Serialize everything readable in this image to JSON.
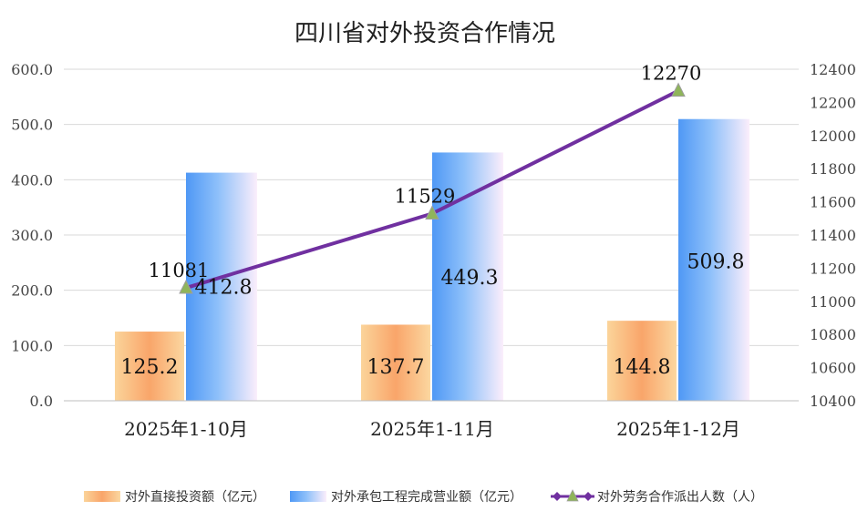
{
  "chart_data": {
    "type": "bar",
    "title": "四川省对外投资合作情况",
    "categories": [
      "2025年1-10月",
      "2025年1-11月",
      "2025年1-12月"
    ],
    "series": [
      {
        "name": "对外直接投资额（亿元）",
        "type": "bar",
        "axis": "left",
        "values": [
          125.2,
          137.7,
          144.8
        ],
        "labels": [
          "125.2",
          "137.7",
          "144.8"
        ],
        "color": "#f9a56a"
      },
      {
        "name": "对外承包工程完成营业额（亿元）",
        "type": "bar",
        "axis": "left",
        "values": [
          412.8,
          449.3,
          509.8
        ],
        "labels": [
          "412.8",
          "449.3",
          "509.8"
        ],
        "color": "#5aa0f5"
      },
      {
        "name": "对外劳务合作派出人数（人）",
        "type": "line",
        "axis": "right",
        "values": [
          11081,
          11529,
          12270
        ],
        "labels": [
          "11081",
          "11529",
          "12270"
        ],
        "color": "#7030a0",
        "marker_color": "#8fb55a"
      }
    ],
    "yleft": {
      "min": 0,
      "max": 600,
      "step": 100,
      "ticks": [
        "0.0",
        "100.0",
        "200.0",
        "300.0",
        "400.0",
        "500.0",
        "600.0"
      ]
    },
    "yright": {
      "min": 10400,
      "max": 12400,
      "step": 200,
      "ticks": [
        "10400",
        "10600",
        "10800",
        "11000",
        "11200",
        "11400",
        "11600",
        "11800",
        "12000",
        "12200",
        "12400"
      ]
    },
    "legend_position": "bottom",
    "grid": true
  }
}
